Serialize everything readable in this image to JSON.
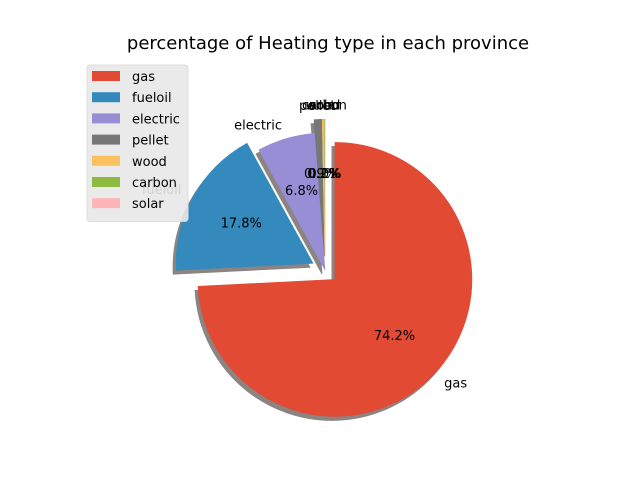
{
  "chart_data": {
    "type": "pie",
    "title": "percentage of Heating type in each province",
    "slices": [
      {
        "label": "gas",
        "value": 74.2,
        "pct_label": "74.2%",
        "color": "#E24A33",
        "exploded": true
      },
      {
        "label": "fueloil",
        "value": 17.8,
        "pct_label": "17.8%",
        "color": "#348ABD",
        "exploded": true
      },
      {
        "label": "electric",
        "value": 6.8,
        "pct_label": "6.8%",
        "color": "#988ED5",
        "exploded": false
      },
      {
        "label": "pellet",
        "value": 0.9,
        "pct_label": "0.9%",
        "color": "#777777",
        "exploded": true
      },
      {
        "label": "wood",
        "value": 0.2,
        "pct_label": "0.2%",
        "color": "#FBC15E",
        "exploded": true
      },
      {
        "label": "carbon",
        "value": 0.1,
        "pct_label": "0.1%",
        "color": "#8EBA42",
        "exploded": true
      },
      {
        "label": "solar",
        "value": 0.0,
        "pct_label": "0.0%",
        "color": "#FFB5B8",
        "exploded": true
      }
    ],
    "start_angle_deg": 90,
    "direction": "clockwise",
    "shadow": true,
    "legend_placement": "upper-left"
  }
}
